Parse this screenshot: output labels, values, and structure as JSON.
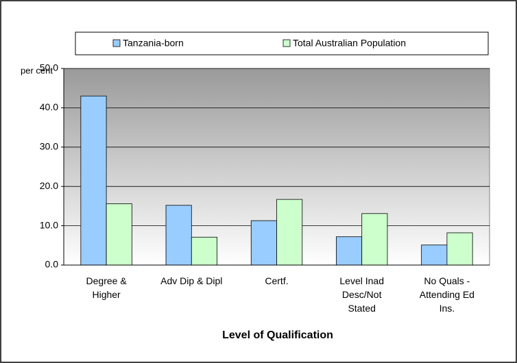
{
  "chart_data": {
    "type": "bar",
    "ylabel": "per cent",
    "xlabel": "Level of Qualification",
    "categories": [
      "Degree & Higher",
      "Adv Dip & Dipl",
      "Certf.",
      "Level Inad Desc/Not Stated",
      "No Quals - Attending Ed Ins."
    ],
    "series": [
      {
        "name": "Tanzania-born",
        "color": "#99ccff",
        "values": [
          43.0,
          15.2,
          11.3,
          7.2,
          5.1
        ]
      },
      {
        "name": "Total Australian Population",
        "color": "#ccffcc",
        "values": [
          15.6,
          7.1,
          16.7,
          13.1,
          8.2
        ]
      }
    ],
    "ylim": [
      0,
      50
    ],
    "yticks": [
      {
        "value": 0,
        "label": "0.0"
      },
      {
        "value": 10,
        "label": "10.0"
      },
      {
        "value": 20,
        "label": "20.0"
      },
      {
        "value": 30,
        "label": "30.0"
      },
      {
        "value": 40,
        "label": "40.0"
      },
      {
        "value": 50,
        "label": "50.0"
      }
    ],
    "grid": true,
    "legend": "top"
  }
}
